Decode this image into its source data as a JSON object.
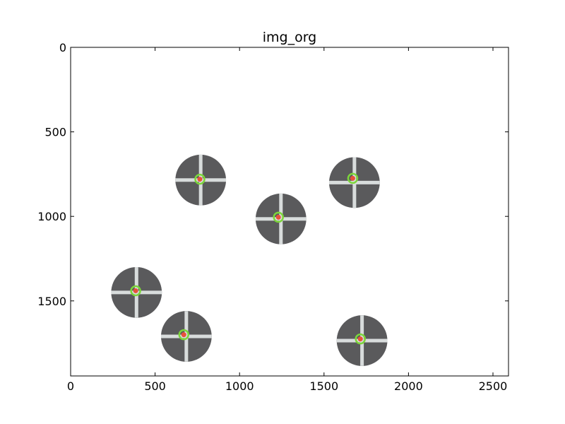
{
  "chart_data": {
    "type": "image",
    "title": "img_org",
    "image_width": 2592,
    "image_height": 1944,
    "xlim": [
      0,
      2592
    ],
    "ylim": [
      1944,
      0
    ],
    "x_ticks": [
      0,
      500,
      1000,
      1500,
      2000,
      2500
    ],
    "y_ticks": [
      0,
      500,
      1000,
      1500
    ],
    "background_color": "#ffffff",
    "disk_color": "#5a5a5c",
    "marker_color": "#e8523a",
    "marker_ring_color": "#7cd63a",
    "stripe_color": "#d8dcdc",
    "objects": [
      {
        "cx": 770,
        "cy": 785,
        "r": 150,
        "mx": 765,
        "my": 780
      },
      {
        "cx": 1680,
        "cy": 800,
        "r": 150,
        "mx": 1670,
        "my": 775
      },
      {
        "cx": 1245,
        "cy": 1015,
        "r": 150,
        "mx": 1230,
        "my": 1005
      },
      {
        "cx": 390,
        "cy": 1450,
        "r": 150,
        "mx": 385,
        "my": 1440
      },
      {
        "cx": 685,
        "cy": 1710,
        "r": 150,
        "mx": 670,
        "my": 1700
      },
      {
        "cx": 1725,
        "cy": 1735,
        "r": 150,
        "mx": 1715,
        "my": 1725
      }
    ]
  }
}
